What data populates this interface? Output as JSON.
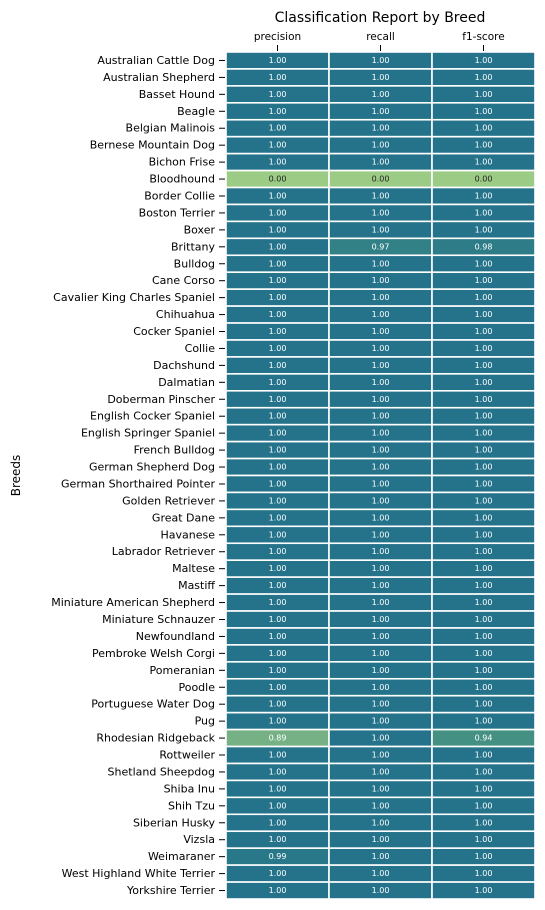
{
  "chart_data": {
    "type": "heatmap",
    "title": "Classification Report by Breed",
    "ylabel": "Breeds",
    "columns": [
      "precision",
      "recall",
      "f1-score"
    ],
    "rows": [
      "Australian Cattle Dog",
      "Australian Shepherd",
      "Basset Hound",
      "Beagle",
      "Belgian Malinois",
      "Bernese Mountain Dog",
      "Bichon Frise",
      "Bloodhound",
      "Border Collie",
      "Boston Terrier",
      "Boxer",
      "Brittany",
      "Bulldog",
      "Cane Corso",
      "Cavalier King Charles Spaniel",
      "Chihuahua",
      "Cocker Spaniel",
      "Collie",
      "Dachshund",
      "Dalmatian",
      "Doberman Pinscher",
      "English Cocker Spaniel",
      "English Springer Spaniel",
      "French Bulldog",
      "German Shepherd Dog",
      "German Shorthaired Pointer",
      "Golden Retriever",
      "Great Dane",
      "Havanese",
      "Labrador Retriever",
      "Maltese",
      "Mastiff",
      "Miniature American Shepherd",
      "Miniature Schnauzer",
      "Newfoundland",
      "Pembroke Welsh Corgi",
      "Pomeranian",
      "Poodle",
      "Portuguese Water Dog",
      "Pug",
      "Rhodesian Ridgeback",
      "Rottweiler",
      "Shetland Sheepdog",
      "Shiba Inu",
      "Shih Tzu",
      "Siberian Husky",
      "Vizsla",
      "Weimaraner",
      "West Highland White Terrier",
      "Yorkshire Terrier"
    ],
    "values": [
      [
        1.0,
        1.0,
        1.0
      ],
      [
        1.0,
        1.0,
        1.0
      ],
      [
        1.0,
        1.0,
        1.0
      ],
      [
        1.0,
        1.0,
        1.0
      ],
      [
        1.0,
        1.0,
        1.0
      ],
      [
        1.0,
        1.0,
        1.0
      ],
      [
        1.0,
        1.0,
        1.0
      ],
      [
        0.0,
        0.0,
        0.0
      ],
      [
        1.0,
        1.0,
        1.0
      ],
      [
        1.0,
        1.0,
        1.0
      ],
      [
        1.0,
        1.0,
        1.0
      ],
      [
        1.0,
        0.97,
        0.98
      ],
      [
        1.0,
        1.0,
        1.0
      ],
      [
        1.0,
        1.0,
        1.0
      ],
      [
        1.0,
        1.0,
        1.0
      ],
      [
        1.0,
        1.0,
        1.0
      ],
      [
        1.0,
        1.0,
        1.0
      ],
      [
        1.0,
        1.0,
        1.0
      ],
      [
        1.0,
        1.0,
        1.0
      ],
      [
        1.0,
        1.0,
        1.0
      ],
      [
        1.0,
        1.0,
        1.0
      ],
      [
        1.0,
        1.0,
        1.0
      ],
      [
        1.0,
        1.0,
        1.0
      ],
      [
        1.0,
        1.0,
        1.0
      ],
      [
        1.0,
        1.0,
        1.0
      ],
      [
        1.0,
        1.0,
        1.0
      ],
      [
        1.0,
        1.0,
        1.0
      ],
      [
        1.0,
        1.0,
        1.0
      ],
      [
        1.0,
        1.0,
        1.0
      ],
      [
        1.0,
        1.0,
        1.0
      ],
      [
        1.0,
        1.0,
        1.0
      ],
      [
        1.0,
        1.0,
        1.0
      ],
      [
        1.0,
        1.0,
        1.0
      ],
      [
        1.0,
        1.0,
        1.0
      ],
      [
        1.0,
        1.0,
        1.0
      ],
      [
        1.0,
        1.0,
        1.0
      ],
      [
        1.0,
        1.0,
        1.0
      ],
      [
        1.0,
        1.0,
        1.0
      ],
      [
        1.0,
        1.0,
        1.0
      ],
      [
        1.0,
        1.0,
        1.0
      ],
      [
        0.89,
        1.0,
        0.94
      ],
      [
        1.0,
        1.0,
        1.0
      ],
      [
        1.0,
        1.0,
        1.0
      ],
      [
        1.0,
        1.0,
        1.0
      ],
      [
        1.0,
        1.0,
        1.0
      ],
      [
        1.0,
        1.0,
        1.0
      ],
      [
        1.0,
        1.0,
        1.0
      ],
      [
        0.99,
        1.0,
        1.0
      ],
      [
        1.0,
        1.0,
        1.0
      ],
      [
        1.0,
        1.0,
        1.0
      ]
    ],
    "colormap": {
      "low_color": "#9ccb86",
      "mid_color": "#3a8a83",
      "high_color": "#25738a",
      "low_text_color": "#222222",
      "high_text_color": "#ffffff"
    },
    "value_format": "2 decimals",
    "grid": false,
    "legend": "none"
  }
}
